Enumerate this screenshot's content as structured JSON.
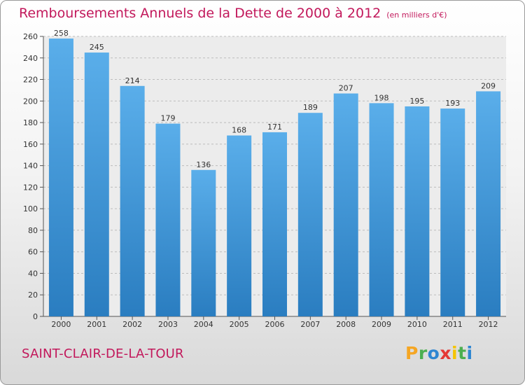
{
  "title": "Remboursements Annuels de la Dette de 2000 à 2012",
  "unit_label": "(en milliers d'€)",
  "commune": "SAINT-CLAIR-DE-LA-TOUR",
  "logo": {
    "letters": [
      "P",
      "r",
      "o",
      "x",
      "i",
      "t",
      "i"
    ],
    "colors": [
      "#f5a623",
      "#4caf50",
      "#2e86d1",
      "#e53935",
      "#f5c400",
      "#4caf50",
      "#2e86d1"
    ]
  },
  "colors": {
    "bar_light": "#5aaeea",
    "bar_dark": "#2a7dc0",
    "title": "#c2185b"
  },
  "chart_data": {
    "type": "bar",
    "categories": [
      "2000",
      "2001",
      "2002",
      "2003",
      "2004",
      "2005",
      "2006",
      "2007",
      "2008",
      "2009",
      "2010",
      "2011",
      "2012"
    ],
    "values": [
      258,
      245,
      214,
      179,
      136,
      168,
      171,
      189,
      207,
      198,
      195,
      193,
      209
    ],
    "yticks": [
      0,
      20,
      40,
      60,
      80,
      100,
      120,
      140,
      160,
      180,
      200,
      220,
      240,
      260
    ],
    "ylim": [
      0,
      260
    ],
    "grid": true,
    "data_labels": true
  }
}
